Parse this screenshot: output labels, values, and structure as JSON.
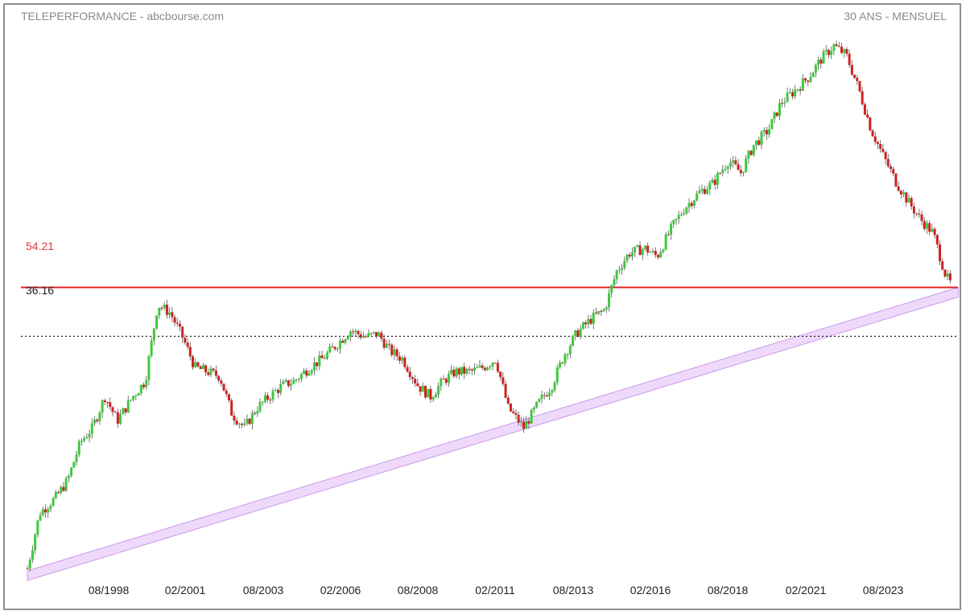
{
  "header": {
    "title": "TELEPERFORMANCE - abcbourse.com",
    "period": "30 ANS - MENSUEL"
  },
  "levels": {
    "resistance": "54.21",
    "support": "36.16"
  },
  "colors": {
    "up": "#3ec93e",
    "down": "#cc2222",
    "resistance_line": "#e02020",
    "support_line": "#222222",
    "channel_fill": "#efd9fb",
    "channel_stroke": "#c99ae8"
  },
  "chart_data": {
    "type": "line",
    "title": "TELEPERFORMANCE - abcbourse.com",
    "subtitle": "30 ANS - MENSUEL",
    "xlabel": "",
    "ylabel": "",
    "x_tick_labels": [
      "08/1998",
      "02/2001",
      "08/2003",
      "02/2006",
      "08/2008",
      "02/2011",
      "08/2013",
      "02/2016",
      "08/2018",
      "02/2021",
      "08/2023"
    ],
    "y_scale": "log",
    "ylim": [
      5,
      430
    ],
    "horizontal_levels": [
      {
        "value": 54.21,
        "label": "54.21",
        "style": "solid",
        "color": "#e02020"
      },
      {
        "value": 36.16,
        "label": "36.16",
        "style": "dotted",
        "color": "#222222"
      }
    ],
    "trend_channel": {
      "start": [
        "1995.9",
        5.2
      ],
      "end": [
        "2025.7",
        54.21
      ]
    },
    "series": [
      {
        "values_note": "monthly close (approx.)",
        "x": [
          1995.9,
          1996.3,
          1996.8,
          1997.2,
          1997.6,
          1998.0,
          1998.4,
          1998.8,
          1999.3,
          1999.7,
          2000.1,
          2000.5,
          2000.9,
          2001.3,
          2001.7,
          2002.1,
          2002.5,
          2002.9,
          2003.3,
          2003.7,
          2004.1,
          2004.5,
          2005.0,
          2005.4,
          2005.9,
          2006.3,
          2006.8,
          2007.2,
          2007.6,
          2008.0,
          2008.5,
          2008.9,
          2009.3,
          2009.7,
          2010.2,
          2010.6,
          2011.0,
          2011.4,
          2011.9,
          2012.4,
          2012.8,
          2013.2,
          2013.6,
          2014.1,
          2014.5,
          2014.9,
          2015.3,
          2015.8,
          2016.2,
          2016.7,
          2017.1,
          2017.6,
          2018.0,
          2018.5,
          2018.9,
          2019.3,
          2019.8,
          2020.2,
          2020.7,
          2021.1,
          2021.5,
          2021.9,
          2022.3,
          2022.7,
          2023.1,
          2023.5,
          2023.9,
          2024.3,
          2024.7,
          2025.1,
          2025.5,
          2025.7
        ],
        "values": [
          5.3,
          8.4,
          9.5,
          11.0,
          15.0,
          17.0,
          22.0,
          18.0,
          22.0,
          25.0,
          47.0,
          44.0,
          36.0,
          28.0,
          27.0,
          26.0,
          19.0,
          17.0,
          20.0,
          22.0,
          24.0,
          25.0,
          28.0,
          30.0,
          34.0,
          38.0,
          36.0,
          37.0,
          32.0,
          30.0,
          24.0,
          22.0,
          25.0,
          27.0,
          27.0,
          28.0,
          30.0,
          20.0,
          17.0,
          21.0,
          24.0,
          31.0,
          37.0,
          42.0,
          45.0,
          62.0,
          72.0,
          75.0,
          70.0,
          90.0,
          105.0,
          120.0,
          128.0,
          155.0,
          140.0,
          175.0,
          200.0,
          250.0,
          280.0,
          310.0,
          360.0,
          400.0,
          370.0,
          280.0,
          200.0,
          160.0,
          130.0,
          110.0,
          95.0,
          85.0,
          60.0,
          55.0
        ]
      }
    ]
  }
}
